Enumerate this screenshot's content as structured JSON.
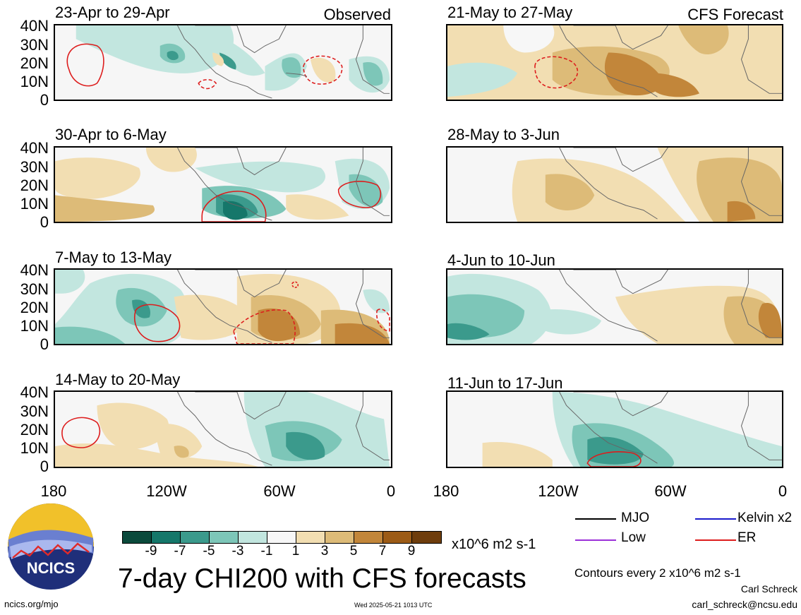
{
  "panels": [
    {
      "title": "23-Apr to 29-Apr",
      "tag": "Observed"
    },
    {
      "title": "21-May to 27-May",
      "tag": "CFS Forecast"
    },
    {
      "title": "30-Apr to 6-May",
      "tag": ""
    },
    {
      "title": "28-May to 3-Jun",
      "tag": ""
    },
    {
      "title": "7-May to 13-May",
      "tag": ""
    },
    {
      "title": "4-Jun to 10-Jun",
      "tag": ""
    },
    {
      "title": "14-May to 20-May",
      "tag": ""
    },
    {
      "title": "11-Jun to 17-Jun",
      "tag": ""
    }
  ],
  "y_labels": [
    "40N",
    "30N",
    "20N",
    "10N",
    "0"
  ],
  "x_labels": [
    "180",
    "120W",
    "60W",
    "0"
  ],
  "colorbar": {
    "labels": [
      "-9",
      "-7",
      "-5",
      "-3",
      "-1",
      "1",
      "3",
      "5",
      "7",
      "9"
    ],
    "colors": [
      "#0b4a3c",
      "#15776a",
      "#3b9a8c",
      "#7dc6b8",
      "#c2e6df",
      "#f7f7f7",
      "#f2deb2",
      "#ddbb78",
      "#c2863a",
      "#9c5b16",
      "#6e3d0c"
    ],
    "units": "x10^6 m2 s-1"
  },
  "legend": {
    "items": [
      {
        "label": "MJO",
        "color": "#000000"
      },
      {
        "label": "Kelvin x2",
        "color": "#1a1acc"
      },
      {
        "label": "Low",
        "color": "#9b30d9"
      },
      {
        "label": "ER",
        "color": "#dd1c1c"
      }
    ],
    "contour_note": "Contours every 2 x10^6 m2 s-1"
  },
  "logo_text": "NCICS",
  "main_title": "7-day CHI200 with CFS forecasts",
  "footer": {
    "url": "ncics.org/mjo",
    "timestamp": "Wed 2025-05-21 1013 UTC",
    "author": "Carl Schreck",
    "email": "carl_schreck@ncsu.edu"
  }
}
